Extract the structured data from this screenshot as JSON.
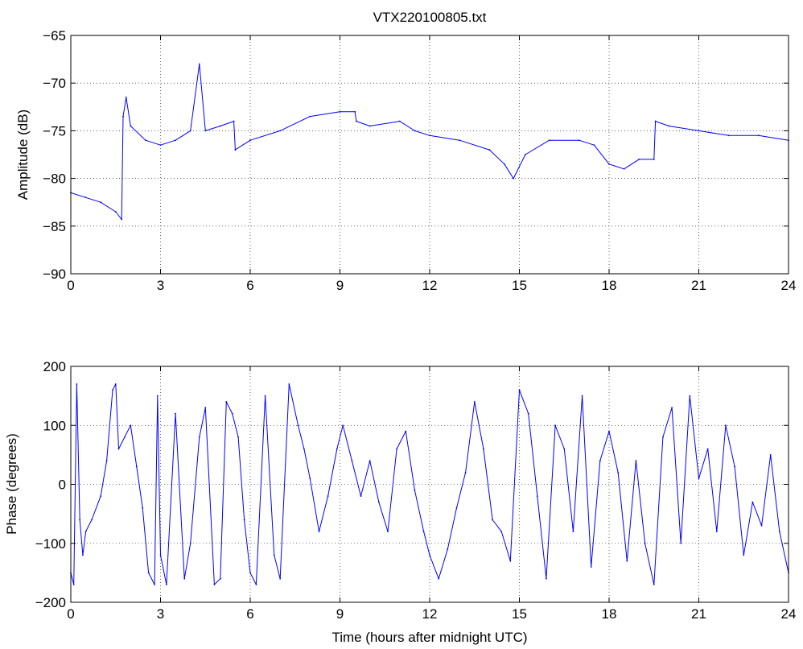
{
  "figure": {
    "title": "VTX220100805.txt",
    "line_color": "#0000ff"
  },
  "chart_data": [
    {
      "type": "line",
      "title": "VTX220100805.txt",
      "xlabel": "",
      "ylabel": "Amplitude (dB)",
      "xlim": [
        0,
        24
      ],
      "ylim": [
        -90,
        -65
      ],
      "xticks": [
        0,
        3,
        6,
        9,
        12,
        15,
        18,
        21,
        24
      ],
      "yticks": [
        -90,
        -85,
        -80,
        -75,
        -70,
        -65
      ],
      "grid": true,
      "series": [
        {
          "x": [
            0,
            0.5,
            1.0,
            1.5,
            1.7,
            1.75,
            1.85,
            2.0,
            2.5,
            3.0,
            3.5,
            4.0,
            4.3,
            4.5,
            5.0,
            5.45,
            5.5,
            6.0,
            7.0,
            8.0,
            9.0,
            9.5,
            9.55,
            10.0,
            11.0,
            11.5,
            12.0,
            13.0,
            14.0,
            14.5,
            14.8,
            15.2,
            16.0,
            17.0,
            17.5,
            18.0,
            18.5,
            19.0,
            19.5,
            19.55,
            20.0,
            21.0,
            22.0,
            23.0,
            24.0
          ],
          "y": [
            -81.5,
            -82.0,
            -82.5,
            -83.5,
            -84.3,
            -73.5,
            -71.5,
            -74.5,
            -76.0,
            -76.5,
            -76.0,
            -75.0,
            -68.0,
            -75.0,
            -74.5,
            -74.0,
            -77.0,
            -76.0,
            -75.0,
            -73.5,
            -73.0,
            -73.0,
            -74.0,
            -74.5,
            -74.0,
            -75.0,
            -75.5,
            -76.0,
            -77.0,
            -78.5,
            -80.0,
            -77.5,
            -76.0,
            -76.0,
            -76.5,
            -78.5,
            -79.0,
            -78.0,
            -78.0,
            -74.0,
            -74.5,
            -75.0,
            -75.5,
            -75.5,
            -76.0
          ]
        }
      ]
    },
    {
      "type": "line",
      "title": "",
      "xlabel": "Time (hours after midnight UTC)",
      "ylabel": "Phase (degrees)",
      "xlim": [
        0,
        24
      ],
      "ylim": [
        -200,
        200
      ],
      "xticks": [
        0,
        3,
        6,
        9,
        12,
        15,
        18,
        21,
        24
      ],
      "yticks": [
        -200,
        -100,
        0,
        100,
        200
      ],
      "grid": true,
      "series": [
        {
          "x": [
            0,
            0.1,
            0.2,
            0.3,
            0.4,
            0.5,
            0.7,
            1.0,
            1.2,
            1.4,
            1.5,
            1.6,
            1.8,
            2.0,
            2.2,
            2.4,
            2.6,
            2.8,
            2.9,
            3.0,
            3.2,
            3.5,
            3.8,
            4.0,
            4.3,
            4.5,
            4.8,
            5.0,
            5.2,
            5.4,
            5.6,
            5.8,
            6.0,
            6.2,
            6.5,
            6.8,
            7.0,
            7.3,
            7.6,
            7.8,
            8.0,
            8.3,
            8.6,
            8.9,
            9.1,
            9.4,
            9.7,
            10.0,
            10.3,
            10.6,
            10.9,
            11.2,
            11.5,
            11.8,
            12.0,
            12.3,
            12.6,
            12.9,
            13.2,
            13.5,
            13.8,
            14.1,
            14.4,
            14.7,
            15.0,
            15.3,
            15.6,
            15.9,
            16.2,
            16.5,
            16.8,
            17.1,
            17.4,
            17.7,
            18.0,
            18.3,
            18.6,
            18.9,
            19.2,
            19.5,
            19.8,
            20.1,
            20.4,
            20.7,
            21.0,
            21.3,
            21.6,
            21.9,
            22.2,
            22.5,
            22.8,
            23.1,
            23.4,
            23.7,
            24.0
          ],
          "y": [
            -150,
            -170,
            170,
            -60,
            -120,
            -80,
            -60,
            -20,
            40,
            160,
            170,
            60,
            80,
            100,
            30,
            -40,
            -150,
            -170,
            150,
            -120,
            -170,
            120,
            -160,
            -100,
            80,
            130,
            -170,
            -160,
            140,
            120,
            80,
            -60,
            -150,
            -170,
            150,
            -120,
            -160,
            170,
            100,
            60,
            10,
            -80,
            -20,
            60,
            100,
            40,
            -20,
            40,
            -30,
            -80,
            60,
            90,
            -10,
            -80,
            -120,
            -160,
            -110,
            -40,
            20,
            140,
            60,
            -60,
            -80,
            -130,
            160,
            120,
            -20,
            -160,
            100,
            60,
            -80,
            150,
            -140,
            40,
            90,
            20,
            -130,
            40,
            -100,
            -170,
            80,
            130,
            -100,
            150,
            10,
            60,
            -80,
            100,
            30,
            -120,
            -30,
            -70,
            50,
            -80,
            -150
          ]
        }
      ]
    }
  ]
}
